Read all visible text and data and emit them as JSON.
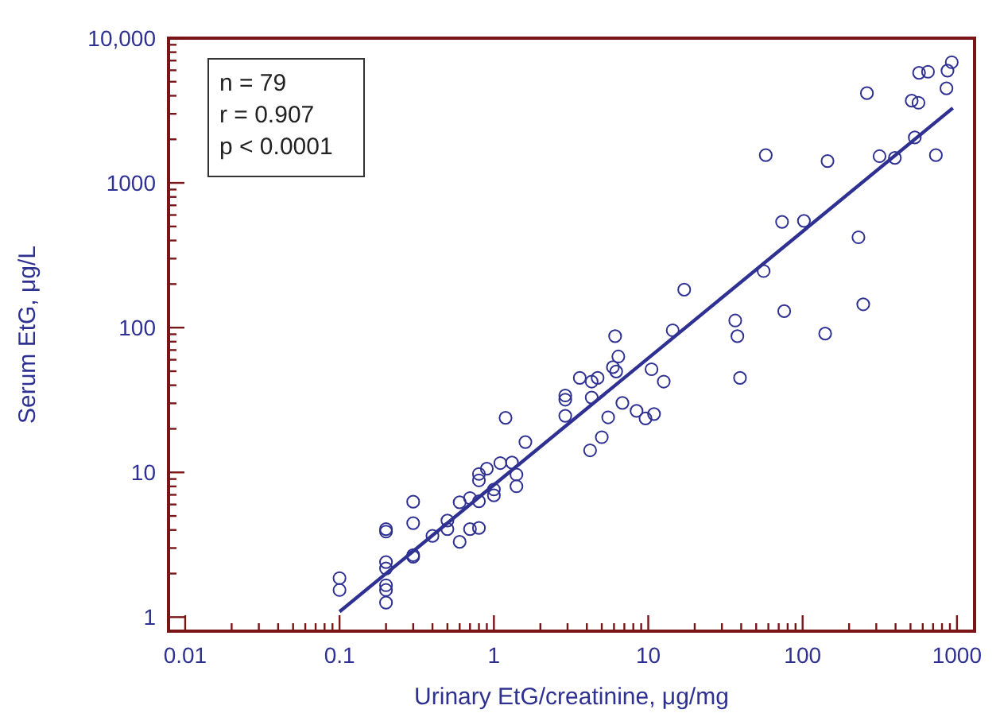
{
  "chart_data": {
    "type": "scatter",
    "xlabel": "Urinary EtG/creatinine, μg/mg",
    "ylabel": "Serum EtG, μg/L",
    "annotations": [
      "n = 79",
      "r = 0.907",
      "p < 0.0001"
    ],
    "log": "xy",
    "grid": false,
    "xlim": [
      0.0078,
      1300
    ],
    "ylim": [
      0.8,
      10000
    ],
    "xticks": [
      0.01,
      {
        "value": 0.02,
        "label": null
      },
      {
        "value": 0.03,
        "label": null
      },
      {
        "value": 0.04,
        "label": null
      },
      {
        "value": 0.05,
        "label": null
      },
      {
        "value": 0.06,
        "label": null
      },
      {
        "value": 0.07,
        "label": null
      },
      {
        "value": 0.08,
        "label": null
      },
      {
        "value": 0.09,
        "label": null
      },
      0.1,
      {
        "value": 0.2,
        "label": null
      },
      {
        "value": 0.3,
        "label": null
      },
      {
        "value": 0.4,
        "label": null
      },
      {
        "value": 0.5,
        "label": null
      },
      {
        "value": 0.6,
        "label": null
      },
      {
        "value": 0.7,
        "label": null
      },
      {
        "value": 0.8,
        "label": null
      },
      {
        "value": 0.9,
        "label": null
      },
      1,
      {
        "value": 2,
        "label": null
      },
      {
        "value": 3,
        "label": null
      },
      {
        "value": 4,
        "label": null
      },
      {
        "value": 5,
        "label": null
      },
      {
        "value": 6,
        "label": null
      },
      {
        "value": 7,
        "label": null
      },
      {
        "value": 8,
        "label": null
      },
      {
        "value": 9,
        "label": null
      },
      10,
      {
        "value": 20,
        "label": null
      },
      {
        "value": 30,
        "label": null
      },
      {
        "value": 40,
        "label": null
      },
      {
        "value": 50,
        "label": null
      },
      {
        "value": 60,
        "label": null
      },
      {
        "value": 70,
        "label": null
      },
      {
        "value": 80,
        "label": null
      },
      {
        "value": 90,
        "label": null
      },
      100,
      {
        "value": 200,
        "label": null
      },
      {
        "value": 300,
        "label": null
      },
      {
        "value": 400,
        "label": null
      },
      {
        "value": 500,
        "label": null
      },
      {
        "value": 600,
        "label": null
      },
      {
        "value": 700,
        "label": null
      },
      {
        "value": 800,
        "label": null
      },
      {
        "value": 900,
        "label": null
      },
      1000
    ],
    "yticks": [
      1,
      {
        "value": 2,
        "label": null
      },
      {
        "value": 3,
        "label": null
      },
      {
        "value": 4,
        "label": null
      },
      {
        "value": 5,
        "label": null
      },
      {
        "value": 6,
        "label": null
      },
      {
        "value": 7,
        "label": null
      },
      {
        "value": 8,
        "label": null
      },
      {
        "value": 9,
        "label": null
      },
      10,
      {
        "value": 20,
        "label": null
      },
      {
        "value": 30,
        "label": null
      },
      {
        "value": 40,
        "label": null
      },
      {
        "value": 50,
        "label": null
      },
      {
        "value": 60,
        "label": null
      },
      {
        "value": 70,
        "label": null
      },
      {
        "value": 80,
        "label": null
      },
      {
        "value": 90,
        "label": null
      },
      100,
      {
        "value": 200,
        "label": null
      },
      {
        "value": 300,
        "label": null
      },
      {
        "value": 400,
        "label": null
      },
      {
        "value": 500,
        "label": null
      },
      {
        "value": 600,
        "label": null
      },
      {
        "value": 700,
        "label": null
      },
      {
        "value": 800,
        "label": null
      },
      {
        "value": 900,
        "label": null
      },
      1000,
      {
        "value": 2000,
        "label": null
      },
      {
        "value": 3000,
        "label": null
      },
      {
        "value": 4000,
        "label": null
      },
      {
        "value": 5000,
        "label": null
      },
      {
        "value": 6000,
        "label": null
      },
      {
        "value": 7000,
        "label": null
      },
      {
        "value": 8000,
        "label": null
      },
      {
        "value": 9000,
        "label": null
      },
      {
        "value": 10000,
        "label": "10,000"
      }
    ],
    "series": [
      {
        "color": "#2e3192",
        "marker": "circle",
        "x": [
          0.1,
          0.1,
          0.2,
          0.2,
          0.2,
          0.2,
          0.2,
          0.2,
          0.2,
          0.3,
          0.3,
          0.3,
          0.3,
          0.4,
          0.5,
          0.5,
          0.6,
          0.6,
          0.7,
          0.7,
          0.8,
          0.8,
          0.8,
          0.8,
          0.9,
          1.0,
          1.0,
          1.1,
          1.19,
          1.31,
          1.4,
          1.4,
          1.6,
          2.9,
          2.9,
          2.9,
          3.6,
          4.3,
          4.7,
          4.3,
          4.2,
          5.0,
          5.5,
          5.9,
          6.2,
          6.1,
          6.4,
          6.8,
          8.4,
          9.6,
          10.9,
          10.5,
          12.6,
          14.4,
          17.1,
          36.6,
          37.8,
          39.3,
          55.9,
          57.7,
          73.6,
          76,
          102,
          140,
          145,
          230,
          247,
          261,
          315,
          396,
          509,
          563,
          533,
          568,
          649,
          730,
          855,
          868,
          925
        ],
        "values": [
          1.86,
          1.54,
          4.06,
          3.9,
          2.4,
          2.17,
          1.66,
          1.54,
          1.26,
          6.27,
          4.46,
          2.68,
          2.61,
          3.64,
          4.65,
          4.06,
          6.21,
          3.31,
          6.65,
          4.06,
          6.32,
          4.13,
          9.75,
          8.81,
          10.6,
          7.62,
          6.94,
          11.6,
          23.8,
          11.7,
          9.66,
          8.02,
          16.2,
          34,
          31.8,
          24.6,
          45,
          42.4,
          45,
          32.9,
          14.2,
          17.5,
          24,
          53.3,
          49.8,
          87.3,
          63.2,
          30.2,
          26.6,
          23.6,
          25.3,
          51.6,
          42.4,
          95.9,
          183,
          112,
          87.3,
          45,
          246,
          1556,
          538,
          130,
          547,
          91,
          1416,
          421,
          145,
          4170,
          1530,
          1490,
          3700,
          3580,
          2060,
          5760,
          5860,
          1556,
          4500,
          5960,
          6820
        ]
      },
      {
        "type": "line",
        "color": "#2e3192",
        "marker": "none",
        "line_style": "solid",
        "x": [
          0.1,
          940
        ],
        "values": [
          1.09,
          3290
        ]
      }
    ]
  }
}
